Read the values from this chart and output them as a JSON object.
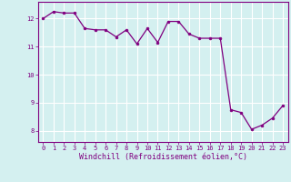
{
  "x": [
    0,
    1,
    2,
    3,
    4,
    5,
    6,
    7,
    8,
    9,
    10,
    11,
    12,
    13,
    14,
    15,
    16,
    17,
    18,
    19,
    20,
    21,
    22,
    23
  ],
  "y": [
    12.0,
    12.25,
    12.2,
    12.2,
    11.65,
    11.6,
    11.6,
    11.35,
    11.6,
    11.1,
    11.65,
    11.15,
    11.9,
    11.9,
    11.45,
    11.3,
    11.3,
    11.3,
    8.75,
    8.65,
    8.05,
    8.2,
    8.45,
    8.9
  ],
  "line_color": "#800080",
  "marker": "o",
  "markersize": 2.0,
  "linewidth": 0.9,
  "xlim": [
    -0.5,
    23.5
  ],
  "ylim": [
    7.6,
    12.6
  ],
  "yticks": [
    8,
    9,
    10,
    11,
    12
  ],
  "xticks": [
    0,
    1,
    2,
    3,
    4,
    5,
    6,
    7,
    8,
    9,
    10,
    11,
    12,
    13,
    14,
    15,
    16,
    17,
    18,
    19,
    20,
    21,
    22,
    23
  ],
  "xlabel": "Windchill (Refroidissement éolien,°C)",
  "bg_color": "#d4f0f0",
  "grid_color": "#aadddd",
  "spine_color": "#800080",
  "text_color": "#800080",
  "tick_fontsize": 5.0,
  "label_fontsize": 6.0
}
